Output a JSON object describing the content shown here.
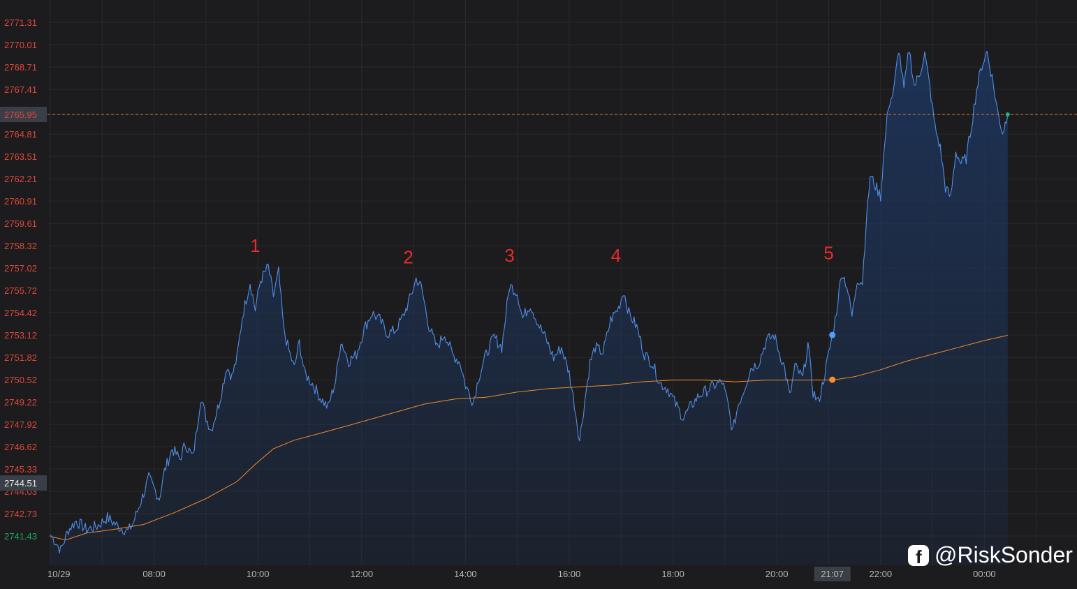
{
  "colors": {
    "background": "#1c1c1e",
    "grid": "#2a2a2d",
    "price_line": "#4f8fe8",
    "area_top": "#1d3358",
    "ma_line": "#f08a2a",
    "tick_text": "#e0463a",
    "tick_green": "#1fa85a",
    "wave_label": "#e82a2a",
    "current_price_line": "#e07a2a",
    "tag_bg": "#3a3f47",
    "tag_text": "#e8e8e8",
    "x_text": "#b8b8b8"
  },
  "chart_data": {
    "type": "line",
    "title": "",
    "xlabel": "",
    "ylabel": "",
    "ylim": [
      2740.0,
      2772.6
    ],
    "y_ticks": [
      "2771.31",
      "2770.01",
      "2768.71",
      "2767.41",
      "2765.95",
      "2764.81",
      "2763.51",
      "2762.21",
      "2760.91",
      "2759.61",
      "2758.32",
      "2757.02",
      "2755.72",
      "2754.42",
      "2753.12",
      "2751.82",
      "2750.52",
      "2749.22",
      "2747.92",
      "2746.62",
      "2745.33",
      "2744.03",
      "2742.73",
      "2741.43"
    ],
    "x_ticks": [
      {
        "label": "10/29",
        "h": 6
      },
      {
        "label": "08:00",
        "h": 8
      },
      {
        "label": "10:00",
        "h": 10
      },
      {
        "label": "12:00",
        "h": 12
      },
      {
        "label": "14:00",
        "h": 14
      },
      {
        "label": "16:00",
        "h": 16
      },
      {
        "label": "18:00",
        "h": 18
      },
      {
        "label": "20:00",
        "h": 20
      },
      {
        "label": "22:00",
        "h": 22
      },
      {
        "label": "00:00",
        "h": 24
      }
    ],
    "xlim_hours": [
      6.0,
      24.0
    ],
    "series": [
      {
        "name": "",
        "type": "area-line",
        "points": [
          [
            6.0,
            2741.5
          ],
          [
            6.1,
            2741.1
          ],
          [
            6.2,
            2740.6
          ],
          [
            6.35,
            2741.8
          ],
          [
            6.5,
            2742.3
          ],
          [
            6.7,
            2741.8
          ],
          [
            6.9,
            2742.0
          ],
          [
            7.1,
            2742.5
          ],
          [
            7.3,
            2742.0
          ],
          [
            7.5,
            2741.7
          ],
          [
            7.6,
            2742.2
          ],
          [
            7.75,
            2743.5
          ],
          [
            7.9,
            2744.8
          ],
          [
            8.0,
            2744.2
          ],
          [
            8.1,
            2743.6
          ],
          [
            8.2,
            2745.2
          ],
          [
            8.35,
            2746.5
          ],
          [
            8.5,
            2745.9
          ],
          [
            8.6,
            2746.8
          ],
          [
            8.75,
            2746.0
          ],
          [
            8.9,
            2749.5
          ],
          [
            9.0,
            2748.3
          ],
          [
            9.1,
            2747.6
          ],
          [
            9.25,
            2749.1
          ],
          [
            9.4,
            2751.3
          ],
          [
            9.5,
            2750.7
          ],
          [
            9.6,
            2751.8
          ],
          [
            9.7,
            2754.2
          ],
          [
            9.85,
            2756.2
          ],
          [
            9.95,
            2754.6
          ],
          [
            10.05,
            2756.3
          ],
          [
            10.2,
            2757.1
          ],
          [
            10.3,
            2755.4
          ],
          [
            10.4,
            2756.8
          ],
          [
            10.5,
            2753.4
          ],
          [
            10.6,
            2752.2
          ],
          [
            10.7,
            2751.2
          ],
          [
            10.8,
            2752.7
          ],
          [
            10.9,
            2750.9
          ],
          [
            11.05,
            2750.3
          ],
          [
            11.2,
            2749.5
          ],
          [
            11.35,
            2748.9
          ],
          [
            11.5,
            2750.5
          ],
          [
            11.6,
            2752.8
          ],
          [
            11.75,
            2751.6
          ],
          [
            11.9,
            2752.0
          ],
          [
            12.05,
            2753.5
          ],
          [
            12.2,
            2754.4
          ],
          [
            12.35,
            2754.0
          ],
          [
            12.5,
            2753.2
          ],
          [
            12.65,
            2753.4
          ],
          [
            12.8,
            2754.2
          ],
          [
            12.95,
            2755.4
          ],
          [
            13.05,
            2756.4
          ],
          [
            13.15,
            2755.9
          ],
          [
            13.3,
            2753.6
          ],
          [
            13.45,
            2752.4
          ],
          [
            13.6,
            2753.2
          ],
          [
            13.75,
            2752.0
          ],
          [
            13.9,
            2751.5
          ],
          [
            14.0,
            2750.2
          ],
          [
            14.15,
            2749.2
          ],
          [
            14.25,
            2750.6
          ],
          [
            14.4,
            2752.0
          ],
          [
            14.55,
            2753.0
          ],
          [
            14.7,
            2752.4
          ],
          [
            14.85,
            2756.0
          ],
          [
            15.0,
            2755.6
          ],
          [
            15.1,
            2754.1
          ],
          [
            15.25,
            2754.9
          ],
          [
            15.4,
            2753.8
          ],
          [
            15.55,
            2752.9
          ],
          [
            15.7,
            2751.8
          ],
          [
            15.85,
            2752.4
          ],
          [
            16.0,
            2750.9
          ],
          [
            16.1,
            2749.1
          ],
          [
            16.2,
            2747.0
          ],
          [
            16.3,
            2749.3
          ],
          [
            16.4,
            2751.5
          ],
          [
            16.5,
            2752.4
          ],
          [
            16.65,
            2752.1
          ],
          [
            16.8,
            2754.0
          ],
          [
            16.95,
            2754.7
          ],
          [
            17.05,
            2755.7
          ],
          [
            17.15,
            2754.4
          ],
          [
            17.3,
            2753.6
          ],
          [
            17.45,
            2752.0
          ],
          [
            17.6,
            2751.5
          ],
          [
            17.75,
            2750.3
          ],
          [
            17.9,
            2750.0
          ],
          [
            18.05,
            2749.1
          ],
          [
            18.2,
            2748.3
          ],
          [
            18.35,
            2749.0
          ],
          [
            18.5,
            2749.6
          ],
          [
            18.65,
            2749.9
          ],
          [
            18.8,
            2750.2
          ],
          [
            18.95,
            2750.4
          ],
          [
            19.05,
            2749.2
          ],
          [
            19.15,
            2747.5
          ],
          [
            19.25,
            2749.0
          ],
          [
            19.35,
            2749.8
          ],
          [
            19.5,
            2751.2
          ],
          [
            19.65,
            2751.5
          ],
          [
            19.8,
            2752.8
          ],
          [
            19.95,
            2753.1
          ],
          [
            20.05,
            2752.1
          ],
          [
            20.15,
            2751.2
          ],
          [
            20.25,
            2749.5
          ],
          [
            20.35,
            2751.3
          ],
          [
            20.5,
            2750.6
          ],
          [
            20.6,
            2752.6
          ],
          [
            20.7,
            2749.8
          ],
          [
            20.8,
            2749.2
          ],
          [
            20.9,
            2750.5
          ],
          [
            21.07,
            2753.1
          ],
          [
            21.15,
            2754.5
          ],
          [
            21.25,
            2756.8
          ],
          [
            21.35,
            2756.0
          ],
          [
            21.45,
            2754.2
          ],
          [
            21.55,
            2756.4
          ],
          [
            21.65,
            2756.2
          ],
          [
            21.72,
            2759.6
          ],
          [
            21.8,
            2762.4
          ],
          [
            21.9,
            2761.8
          ],
          [
            22.0,
            2761.2
          ],
          [
            22.05,
            2763.2
          ],
          [
            22.15,
            2766.5
          ],
          [
            22.25,
            2767.2
          ],
          [
            22.35,
            2769.8
          ],
          [
            22.45,
            2767.4
          ],
          [
            22.55,
            2769.8
          ],
          [
            22.65,
            2767.6
          ],
          [
            22.75,
            2768.3
          ],
          [
            22.85,
            2769.5
          ],
          [
            22.95,
            2767.5
          ],
          [
            23.05,
            2765.2
          ],
          [
            23.15,
            2764.0
          ],
          [
            23.25,
            2761.7
          ],
          [
            23.35,
            2761.1
          ],
          [
            23.45,
            2763.8
          ],
          [
            23.55,
            2763.1
          ],
          [
            23.65,
            2763.4
          ],
          [
            23.75,
            2765.3
          ],
          [
            23.85,
            2767.4
          ],
          [
            23.95,
            2768.8
          ],
          [
            24.05,
            2769.6
          ],
          [
            24.15,
            2768.1
          ],
          [
            24.25,
            2766.2
          ],
          [
            24.35,
            2764.9
          ],
          [
            24.45,
            2765.95
          ]
        ]
      },
      {
        "name": "",
        "type": "line",
        "points": [
          [
            6.0,
            2741.4
          ],
          [
            6.3,
            2741.2
          ],
          [
            6.7,
            2741.6
          ],
          [
            7.2,
            2741.8
          ],
          [
            7.8,
            2742.1
          ],
          [
            8.4,
            2742.8
          ],
          [
            9.0,
            2743.6
          ],
          [
            9.6,
            2744.6
          ],
          [
            9.95,
            2745.6
          ],
          [
            10.3,
            2746.5
          ],
          [
            10.7,
            2747.0
          ],
          [
            11.2,
            2747.4
          ],
          [
            11.8,
            2747.9
          ],
          [
            12.5,
            2748.5
          ],
          [
            13.2,
            2749.1
          ],
          [
            13.8,
            2749.4
          ],
          [
            14.4,
            2749.5
          ],
          [
            15.0,
            2749.8
          ],
          [
            15.6,
            2750.0
          ],
          [
            16.2,
            2750.1
          ],
          [
            16.8,
            2750.2
          ],
          [
            17.4,
            2750.4
          ],
          [
            18.0,
            2750.5
          ],
          [
            18.6,
            2750.5
          ],
          [
            19.2,
            2750.4
          ],
          [
            19.8,
            2750.5
          ],
          [
            20.4,
            2750.5
          ],
          [
            21.07,
            2750.5
          ],
          [
            21.5,
            2750.7
          ],
          [
            22.0,
            2751.1
          ],
          [
            22.5,
            2751.6
          ],
          [
            23.0,
            2752.0
          ],
          [
            23.5,
            2752.4
          ],
          [
            24.0,
            2752.8
          ],
          [
            24.45,
            2753.1
          ]
        ]
      }
    ],
    "markers": [
      {
        "label": "1",
        "h": 9.95,
        "y": 2758.32
      },
      {
        "label": "2",
        "h": 12.9,
        "y": 2757.65
      },
      {
        "label": "3",
        "h": 14.85,
        "y": 2757.75
      },
      {
        "label": "4",
        "h": 16.9,
        "y": 2757.75
      },
      {
        "label": "5",
        "h": 21.0,
        "y": 2757.9
      }
    ],
    "current_price": {
      "label": "2765.95",
      "value": 2765.95
    },
    "crosshair_price": {
      "label": "2744.51",
      "value": 2744.51
    },
    "crosshair_time": {
      "label": "21:07",
      "h": 21.07
    },
    "crosshair_price_point": 2753.12,
    "crosshair_ma_point": 2750.52
  },
  "watermark": {
    "icon": "facebook-icon",
    "text": "@RiskSonder"
  }
}
